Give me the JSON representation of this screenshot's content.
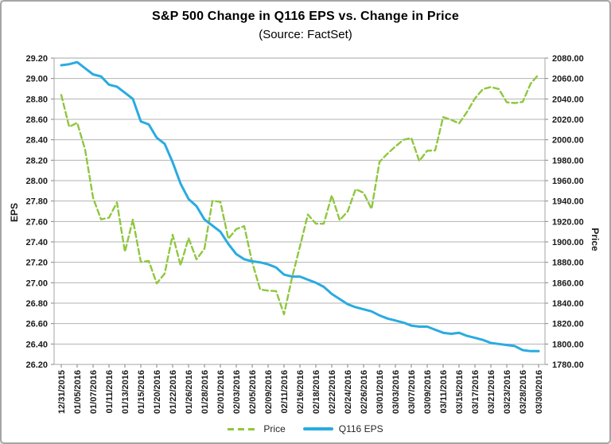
{
  "chart_data": {
    "type": "line",
    "title": "S&P 500 Change in Q116 EPS vs. Change in Price",
    "subtitle": "(Source: FactSet)",
    "legend_position": "bottom",
    "grid": true,
    "colors": {
      "price_green": "#8FC73E",
      "eps_blue": "#29ABE2",
      "gridline": "#b3b3b3",
      "plot_border": "#a6a6a6",
      "tick_text": "#1a1a1a"
    },
    "x_label_step": 2,
    "x_labels": [
      "12/31/2015",
      "01/05/2016",
      "01/07/2016",
      "01/11/2016",
      "01/13/2016",
      "01/15/2016",
      "01/20/2016",
      "01/22/2016",
      "01/26/2016",
      "01/28/2016",
      "02/01/2016",
      "02/03/2016",
      "02/05/2016",
      "02/09/2016",
      "02/11/2016",
      "02/16/2016",
      "02/18/2016",
      "02/22/2016",
      "02/24/2016",
      "02/26/2016",
      "03/01/2016",
      "03/03/2016",
      "03/07/2016",
      "03/09/2016",
      "03/11/2016",
      "03/15/2016",
      "03/17/2016",
      "03/21/2016",
      "03/23/2016",
      "03/28/2016",
      "03/30/2016"
    ],
    "left_axis": {
      "label": "EPS",
      "min": 26.2,
      "max": 29.2,
      "step": 0.2,
      "ticks": [
        "29.20",
        "29.00",
        "28.80",
        "28.60",
        "28.40",
        "28.20",
        "28.00",
        "27.80",
        "27.60",
        "27.40",
        "27.20",
        "27.00",
        "26.80",
        "26.60",
        "26.40",
        "26.20"
      ]
    },
    "right_axis": {
      "label": "Price",
      "min": 1780.0,
      "max": 2080.0,
      "step": 20.0,
      "ticks": [
        "2080.00",
        "2060.00",
        "2040.00",
        "2020.00",
        "2000.00",
        "1980.00",
        "1960.00",
        "1940.00",
        "1920.00",
        "1900.00",
        "1880.00",
        "1860.00",
        "1840.00",
        "1820.00",
        "1800.00",
        "1780.00"
      ]
    },
    "series": [
      {
        "name": "Price",
        "axis": "right",
        "style": "dashed",
        "color": "#8FC73E",
        "values": [
          2043.94,
          2012.66,
          2016.71,
          1990.26,
          1943.09,
          1922.03,
          1923.67,
          1938.68,
          1890.28,
          1921.84,
          1880.33,
          1881.33,
          1859.33,
          1868.99,
          1906.9,
          1877.08,
          1903.63,
          1882.95,
          1893.36,
          1940.24,
          1939.38,
          1903.03,
          1912.53,
          1915.45,
          1880.05,
          1853.44,
          1852.21,
          1851.86,
          1829.08,
          1864.78,
          1895.58,
          1926.82,
          1917.83,
          1917.78,
          1945.5,
          1921.27,
          1929.8,
          1951.7,
          1948.05,
          1932.23,
          1978.35,
          1986.45,
          1993.4,
          1999.99,
          2001.76,
          1979.26,
          1989.26,
          1989.57,
          2022.19,
          2019.64,
          2015.93,
          2027.22,
          2040.59,
          2049.58,
          2051.6,
          2049.8,
          2036.71,
          2035.94,
          2037.05,
          2055.01,
          2063.95
        ]
      },
      {
        "name": "Q116 EPS",
        "axis": "left",
        "style": "solid",
        "color": "#29ABE2",
        "values": [
          29.13,
          29.14,
          29.16,
          29.1,
          29.04,
          29.02,
          28.94,
          28.92,
          28.86,
          28.8,
          28.58,
          28.55,
          28.42,
          28.36,
          28.18,
          27.97,
          27.82,
          27.75,
          27.62,
          27.56,
          27.5,
          27.38,
          27.28,
          27.23,
          27.21,
          27.2,
          27.18,
          27.15,
          27.08,
          27.06,
          27.06,
          27.03,
          27.0,
          26.96,
          26.89,
          26.84,
          26.79,
          26.76,
          26.74,
          26.72,
          26.68,
          26.65,
          26.63,
          26.61,
          26.58,
          26.57,
          26.57,
          26.54,
          26.51,
          26.5,
          26.51,
          26.48,
          26.46,
          26.44,
          26.41,
          26.4,
          26.39,
          26.38,
          26.34,
          26.33,
          26.33
        ]
      }
    ]
  }
}
